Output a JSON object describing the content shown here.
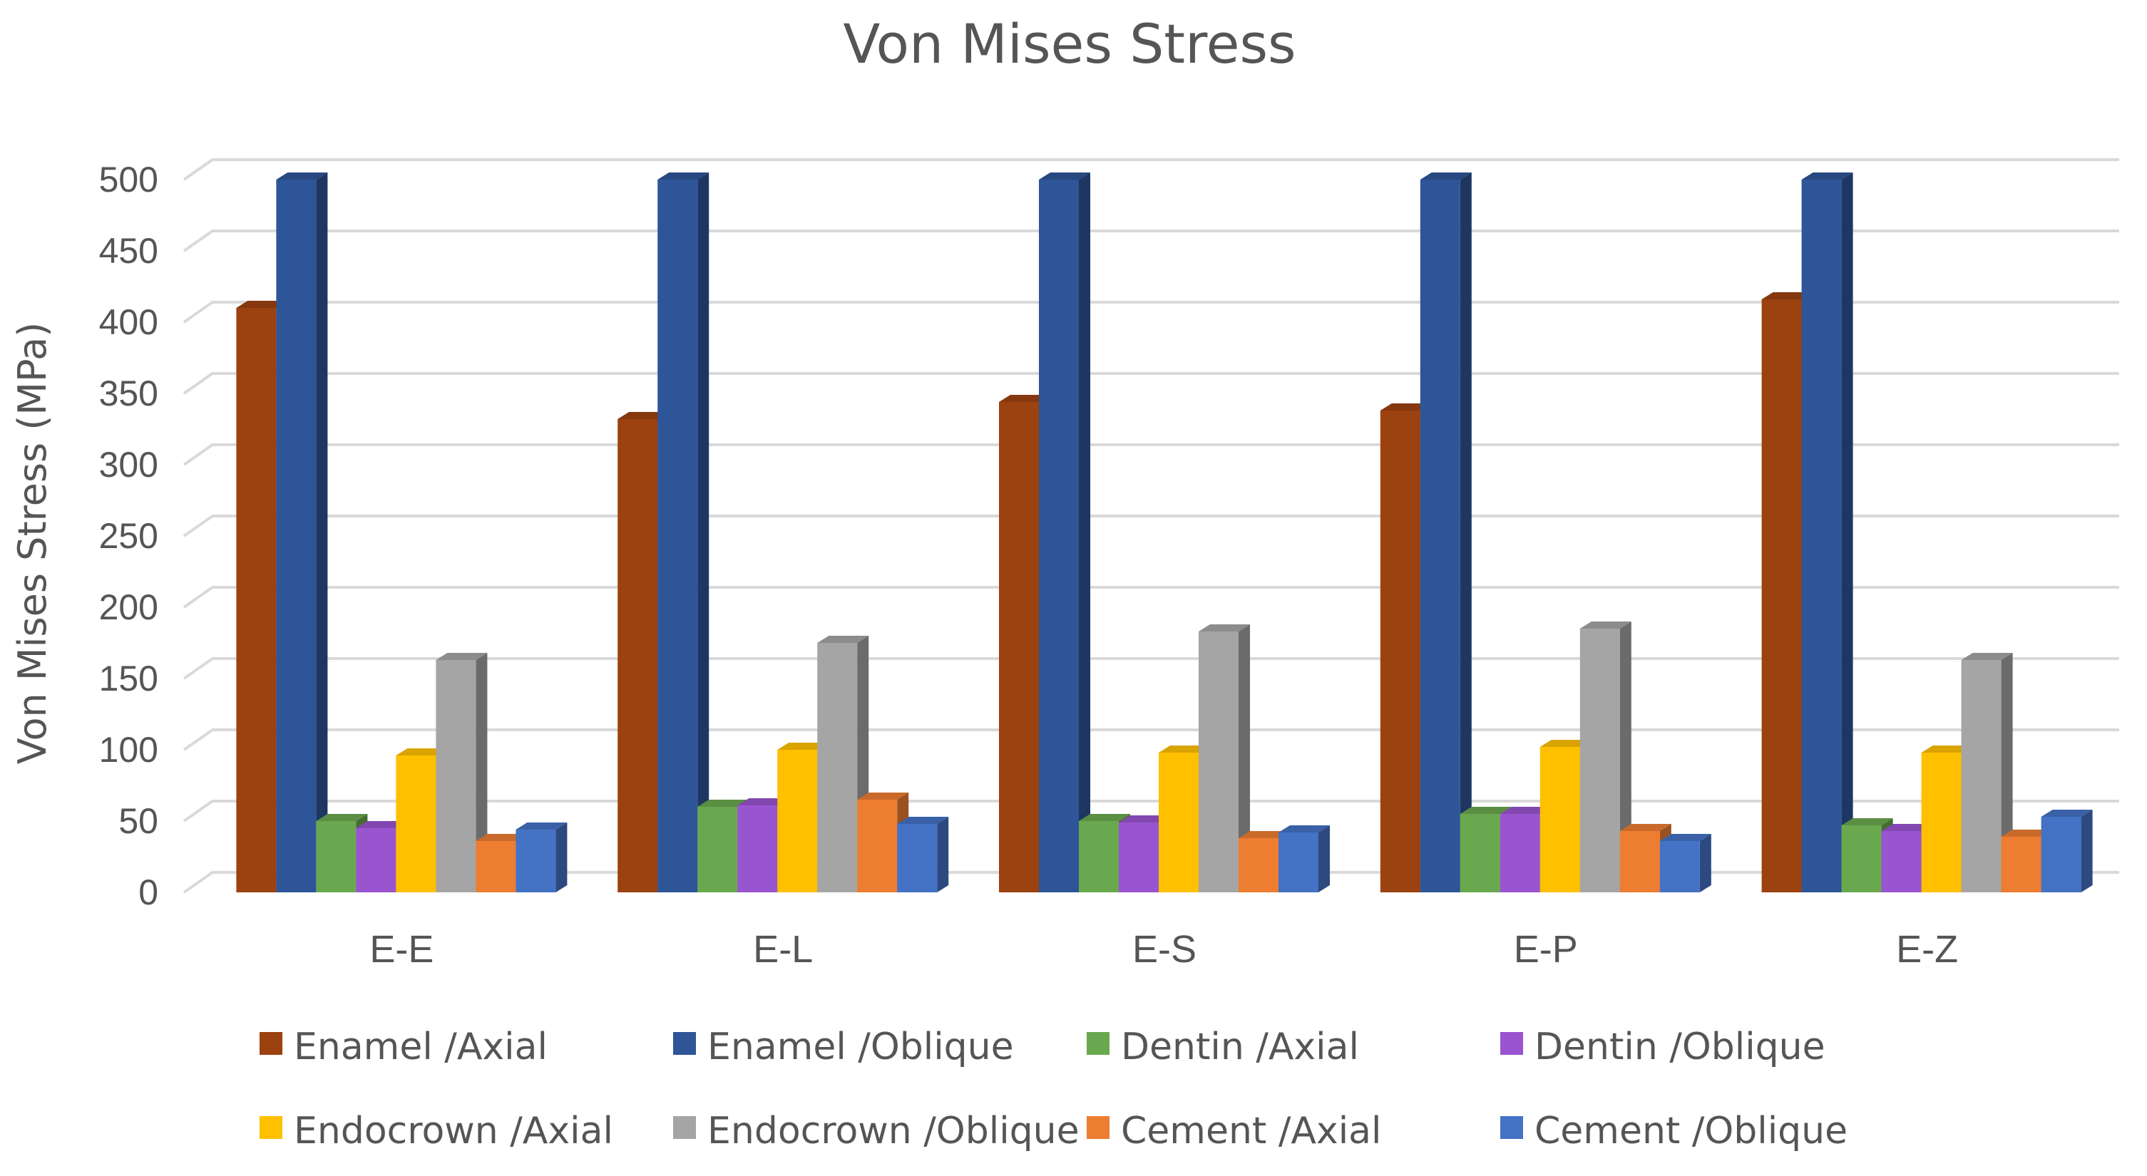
{
  "chart_data": {
    "type": "bar",
    "title": "Von Mises Stress",
    "xlabel": "",
    "ylabel": "Von Mises Stress (MPa)",
    "ylim": [
      0,
      500
    ],
    "yticks": [
      0,
      50,
      100,
      150,
      200,
      250,
      300,
      350,
      400,
      450,
      500
    ],
    "grid": true,
    "legend_position": "bottom",
    "categories": [
      "E-E",
      "E-L",
      "E-S",
      "E-P",
      "E-Z"
    ],
    "series": [
      {
        "name": "Enamel /Axial",
        "color": "#9c4110",
        "values": [
          410,
          332,
          344,
          338,
          416
        ]
      },
      {
        "name": "Enamel /Oblique",
        "color": "#2e5597",
        "values": [
          500,
          500,
          500,
          500,
          500
        ]
      },
      {
        "name": "Dentin /Axial",
        "color": "#6aa84f",
        "values": [
          50,
          60,
          50,
          55,
          47
        ]
      },
      {
        "name": "Dentin /Oblique",
        "color": "#9955cf",
        "values": [
          45,
          61,
          49,
          55,
          43
        ]
      },
      {
        "name": "Endocrown /Axial",
        "color": "#ffc000",
        "values": [
          96,
          100,
          98,
          102,
          98
        ]
      },
      {
        "name": "Endocrown /Oblique",
        "color": "#a5a5a5",
        "values": [
          163,
          175,
          183,
          185,
          163
        ]
      },
      {
        "name": "Cement /Axial",
        "color": "#ed7d31",
        "values": [
          36,
          65,
          38,
          43,
          39
        ]
      },
      {
        "name": "Cement /Oblique",
        "color": "#4472c4",
        "values": [
          44,
          48,
          42,
          36,
          53
        ]
      }
    ]
  }
}
